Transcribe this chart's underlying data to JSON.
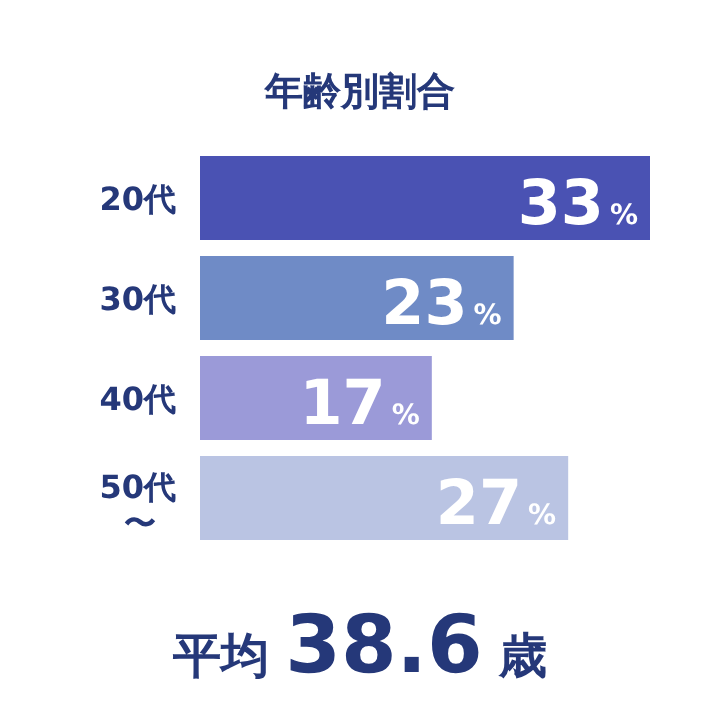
{
  "chart_data": {
    "type": "bar",
    "orientation": "horizontal",
    "title": "年齢別割合",
    "categories": [
      "20代",
      "30代",
      "40代",
      "50代〜"
    ],
    "values": [
      33,
      23,
      17,
      27
    ],
    "colors": [
      "#4a52b3",
      "#6f8bc6",
      "#9b9ad8",
      "#bac4e3"
    ],
    "value_labels": [
      "33%",
      "23%",
      "17%",
      "27%"
    ],
    "annotations": [
      "平均 38.6 歳"
    ]
  }
}
